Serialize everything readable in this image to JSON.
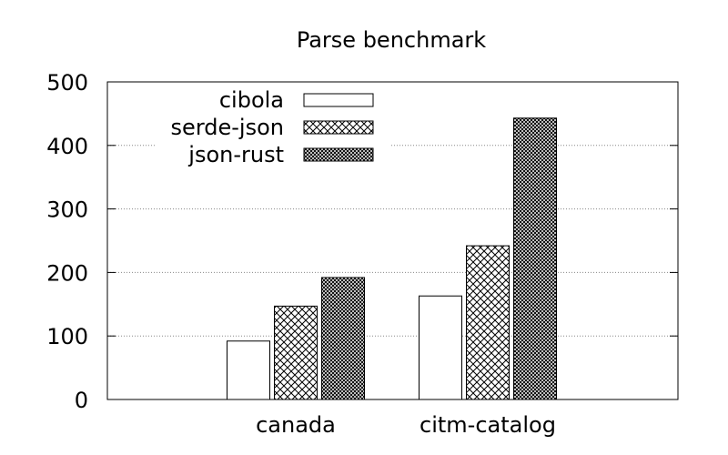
{
  "chart_data": {
    "type": "bar",
    "title": "Parse benchmark",
    "xlabel": "",
    "ylabel": "",
    "categories": [
      "canada",
      "citm-catalog"
    ],
    "series": [
      {
        "name": "cibola",
        "values": [
          92,
          163
        ],
        "pattern": "empty"
      },
      {
        "name": "serde-json",
        "values": [
          147,
          242
        ],
        "pattern": "crosshatch"
      },
      {
        "name": "json-rust",
        "values": [
          192,
          443
        ],
        "pattern": "dense"
      }
    ],
    "ylim": [
      0,
      500
    ],
    "yticks": [
      0,
      100,
      200,
      300,
      400,
      500
    ],
    "grid": true,
    "legend_position": "top-left"
  }
}
